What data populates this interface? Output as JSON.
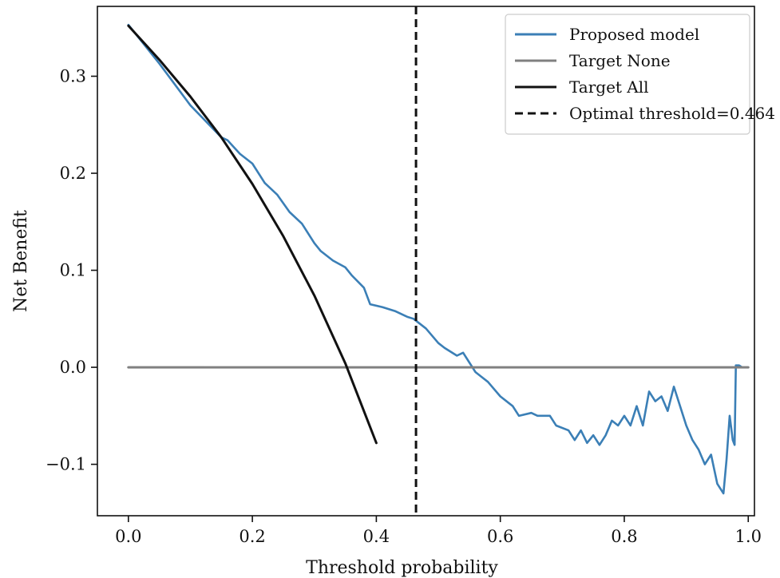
{
  "chart_data": {
    "type": "line",
    "title": "",
    "xlabel": "Threshold probability",
    "ylabel": "Net Benefit",
    "xlim": [
      -0.05,
      1.01
    ],
    "ylim": [
      -0.153,
      0.372
    ],
    "x_ticks": [
      0.0,
      0.2,
      0.4,
      0.6,
      0.8,
      1.0
    ],
    "x_tick_labels": [
      "0.0",
      "0.2",
      "0.4",
      "0.6",
      "0.8",
      "1.0"
    ],
    "y_ticks": [
      -0.1,
      0.0,
      0.1,
      0.2,
      0.3
    ],
    "y_tick_labels": [
      "−0.1",
      "0.0",
      "0.1",
      "0.2",
      "0.3"
    ],
    "grid": false,
    "legend_position": "top-right",
    "series": [
      {
        "name": "Proposed model",
        "color": "#3b7fb6",
        "style": "solid",
        "x": [
          0.0,
          0.05,
          0.1,
          0.15,
          0.16,
          0.18,
          0.2,
          0.22,
          0.24,
          0.26,
          0.28,
          0.3,
          0.31,
          0.33,
          0.35,
          0.36,
          0.38,
          0.39,
          0.41,
          0.43,
          0.45,
          0.46,
          0.48,
          0.5,
          0.51,
          0.53,
          0.54,
          0.55,
          0.56,
          0.57,
          0.58,
          0.6,
          0.62,
          0.63,
          0.65,
          0.66,
          0.68,
          0.69,
          0.71,
          0.72,
          0.73,
          0.74,
          0.75,
          0.76,
          0.77,
          0.78,
          0.79,
          0.8,
          0.81,
          0.82,
          0.83,
          0.84,
          0.85,
          0.86,
          0.87,
          0.88,
          0.89,
          0.9,
          0.91,
          0.92,
          0.93,
          0.94,
          0.95,
          0.96,
          0.965,
          0.97,
          0.975,
          0.978,
          0.98,
          0.985,
          0.99
        ],
        "y": [
          0.353,
          0.313,
          0.27,
          0.237,
          0.234,
          0.22,
          0.21,
          0.19,
          0.178,
          0.16,
          0.148,
          0.128,
          0.12,
          0.11,
          0.103,
          0.095,
          0.082,
          0.065,
          0.062,
          0.058,
          0.052,
          0.05,
          0.04,
          0.025,
          0.02,
          0.012,
          0.015,
          0.005,
          -0.005,
          -0.01,
          -0.015,
          -0.03,
          -0.04,
          -0.05,
          -0.047,
          -0.05,
          -0.05,
          -0.06,
          -0.065,
          -0.075,
          -0.065,
          -0.078,
          -0.07,
          -0.08,
          -0.07,
          -0.055,
          -0.06,
          -0.05,
          -0.06,
          -0.04,
          -0.06,
          -0.025,
          -0.035,
          -0.03,
          -0.045,
          -0.02,
          -0.04,
          -0.06,
          -0.075,
          -0.085,
          -0.1,
          -0.09,
          -0.12,
          -0.13,
          -0.095,
          -0.05,
          -0.075,
          -0.08,
          0.002,
          0.002,
          0.0
        ]
      },
      {
        "name": "Target None",
        "color": "#808080",
        "style": "solid",
        "x": [
          0.0,
          1.0
        ],
        "y": [
          0.0,
          0.0
        ]
      },
      {
        "name": "Target All",
        "color": "#111111",
        "style": "solid",
        "x": [
          0.0,
          0.05,
          0.1,
          0.15,
          0.2,
          0.25,
          0.3,
          0.35,
          0.4
        ],
        "y": [
          0.352,
          0.317,
          0.279,
          0.237,
          0.189,
          0.135,
          0.074,
          0.004,
          -0.078
        ]
      },
      {
        "name": "Optimal threshold=0.464",
        "color": "#111111",
        "style": "dashed",
        "vline_x": 0.464
      }
    ]
  }
}
